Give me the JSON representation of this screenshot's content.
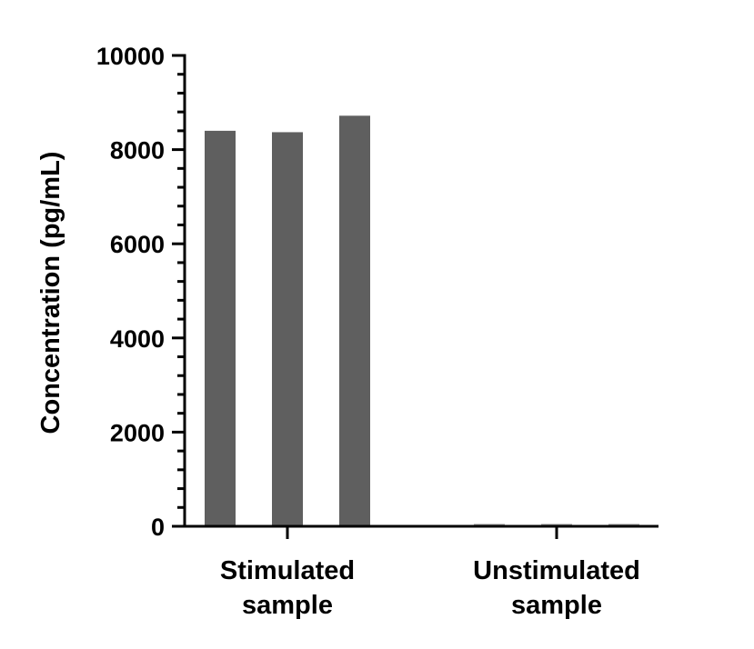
{
  "chart_data": {
    "type": "bar",
    "title": "",
    "xlabel": "",
    "ylabel": "Concentration (pg/mL)",
    "ylim": [
      0,
      10000
    ],
    "yticks": [
      0,
      2000,
      4000,
      6000,
      8000,
      10000
    ],
    "ytick_labels": [
      "0",
      "2000",
      "4000",
      "6000",
      "8000",
      "10000"
    ],
    "grid": false,
    "legend": "none",
    "groups": [
      {
        "label_lines": [
          "Stimulated",
          "sample"
        ],
        "values": [
          8400,
          8370,
          8720
        ]
      },
      {
        "label_lines": [
          "Unstimulated",
          "sample"
        ],
        "values": [
          50,
          50,
          50
        ]
      }
    ],
    "colors": {
      "stimulated_bar": "#5f5f5f",
      "unstimulated_bar": "#9a9a9a",
      "axis": "#000000"
    }
  }
}
